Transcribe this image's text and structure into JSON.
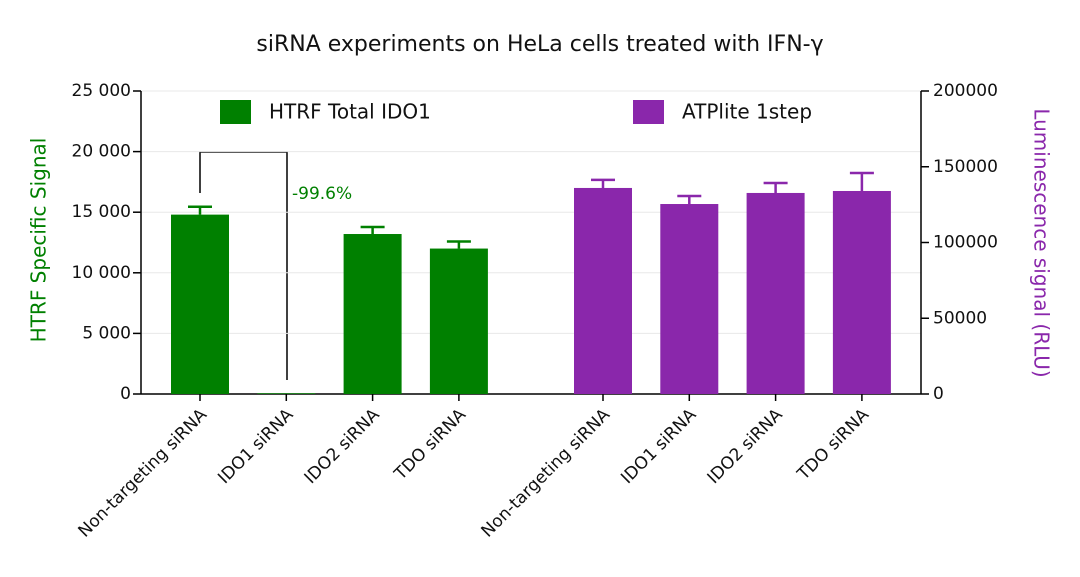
{
  "chart_data": {
    "type": "bar",
    "title": "siRNA experiments on HeLa cells treated with IFN-γ",
    "y_label": "HTRF Specific Signal",
    "y2_label": "Luminescence signal (RLU)",
    "annotation": "-99.6%",
    "categories": [
      "Non-targeting siRNA",
      "IDO1 siRNA",
      "IDO2 siRNA",
      "TDO siRNA",
      "Non-targeting siRNA",
      "IDO1 siRNA",
      "IDO2 siRNA",
      "TDO siRNA"
    ],
    "series": [
      {
        "name": "HTRF Total IDO1",
        "color": "#008000",
        "values": [
          14800,
          59,
          13200,
          12000,
          null,
          null,
          null,
          null
        ],
        "errors": [
          650,
          null,
          580,
          580,
          null,
          null,
          null,
          null
        ]
      },
      {
        "name": "ATPlite 1step",
        "color": "#8a27ab",
        "axis": "y2",
        "values": [
          null,
          null,
          null,
          null,
          136000,
          125400,
          132700,
          134000
        ],
        "errors": [
          null,
          null,
          null,
          null,
          5300,
          5300,
          6600,
          11900
        ]
      }
    ],
    "ylim": [
      0,
      25000
    ],
    "yticks": [
      0,
      {
        "value": 5000,
        "label": "5 000"
      },
      {
        "value": 10000,
        "label": "10 000"
      },
      {
        "value": 15000,
        "label": "15 000"
      },
      {
        "value": 20000,
        "label": "20 000"
      },
      {
        "value": 25000,
        "label": "25 000"
      }
    ],
    "y2lim": [
      0,
      200000
    ],
    "y2ticks": [
      0,
      50000,
      100000,
      150000,
      200000
    ],
    "grid": true
  }
}
